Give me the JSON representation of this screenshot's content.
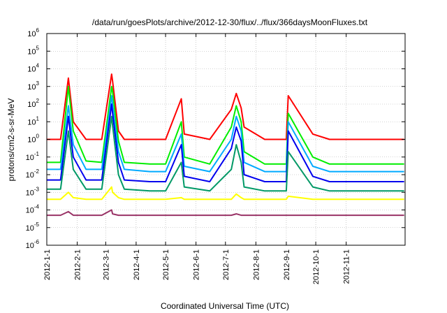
{
  "chart_data": {
    "type": "line",
    "title": "/data/run/goesPlots/archive/2012-12-30/flux/../flux/366daysMoonFluxes.txt",
    "xlabel": "Coordinated Universal Time (UTC)",
    "ylabel": "protons/cm2-s-sr-MeV",
    "yscale": "log",
    "ylim": [
      1e-06,
      1000000.0
    ],
    "xlim": [
      "2012-01-01",
      "2012-12-31"
    ],
    "grid": true,
    "legend": "none",
    "x_ticks": [
      "2012-1-1",
      "2012-2-1",
      "2012-3-1",
      "2012-4-1",
      "2012-5-1",
      "2012-6-1",
      "2012-7-1",
      "2012-8-1",
      "2012-9-1",
      "2012-10-1",
      "2012-11-1"
    ],
    "y_ticks": [
      {
        "value": 1e-06,
        "base": "10",
        "exp": "-6"
      },
      {
        "value": 1e-05,
        "base": "10",
        "exp": "-5"
      },
      {
        "value": 0.0001,
        "base": "10",
        "exp": "-4"
      },
      {
        "value": 0.001,
        "base": "10",
        "exp": "-3"
      },
      {
        "value": 0.01,
        "base": "10",
        "exp": "-2"
      },
      {
        "value": 0.1,
        "base": "10",
        "exp": "-1"
      },
      {
        "value": 1,
        "base": "10",
        "exp": "0"
      },
      {
        "value": 10,
        "base": "10",
        "exp": "1"
      },
      {
        "value": 100,
        "base": "10",
        "exp": "2"
      },
      {
        "value": 1000,
        "base": "10",
        "exp": "3"
      },
      {
        "value": 10000,
        "base": "10",
        "exp": "4"
      },
      {
        "value": 100000,
        "base": "10",
        "exp": "5"
      },
      {
        "value": 1000000,
        "base": "10",
        "exp": "6"
      }
    ],
    "x": [
      "2012-01-01",
      "2012-01-15",
      "2012-01-23",
      "2012-01-28",
      "2012-02-10",
      "2012-02-26",
      "2012-03-07",
      "2012-03-08",
      "2012-03-14",
      "2012-03-20",
      "2012-04-15",
      "2012-05-01",
      "2012-05-17",
      "2012-05-20",
      "2012-06-15",
      "2012-07-07",
      "2012-07-12",
      "2012-07-17",
      "2012-07-20",
      "2012-08-10",
      "2012-09-01",
      "2012-09-03",
      "2012-09-28",
      "2012-10-15",
      "2012-11-01",
      "2012-11-15",
      "2012-12-10",
      "2012-12-30"
    ],
    "series": [
      {
        "color": "#ff0000",
        "values": [
          1,
          1,
          3000,
          10,
          1,
          1,
          5000,
          2000,
          3,
          1,
          1,
          1,
          200,
          2,
          1,
          50,
          400,
          60,
          5,
          1,
          1,
          300,
          2,
          1,
          1,
          1,
          1,
          1
        ]
      },
      {
        "color": "#00ee00",
        "values": [
          0.05,
          0.05,
          1000,
          3,
          0.06,
          0.05,
          1000,
          500,
          0.8,
          0.05,
          0.04,
          0.04,
          10,
          0.1,
          0.04,
          5,
          80,
          10,
          0.2,
          0.04,
          0.04,
          30,
          0.1,
          0.04,
          0.04,
          0.04,
          0.04,
          0.04
        ]
      },
      {
        "color": "#00aaff",
        "values": [
          0.02,
          0.02,
          80,
          0.5,
          0.02,
          0.02,
          300,
          100,
          0.2,
          0.02,
          0.015,
          0.015,
          2,
          0.03,
          0.015,
          1,
          20,
          3,
          0.05,
          0.015,
          0.015,
          10,
          0.03,
          0.015,
          0.015,
          0.015,
          0.015,
          0.015
        ]
      },
      {
        "color": "#0000ee",
        "values": [
          0.005,
          0.005,
          20,
          0.1,
          0.005,
          0.005,
          100,
          30,
          0.05,
          0.005,
          0.004,
          0.004,
          0.5,
          0.008,
          0.004,
          0.3,
          5,
          0.8,
          0.01,
          0.004,
          0.004,
          3,
          0.008,
          0.004,
          0.004,
          0.004,
          0.004,
          0.004
        ]
      },
      {
        "color": "#009966",
        "values": [
          0.0015,
          0.0015,
          3,
          0.02,
          0.0015,
          0.0015,
          20,
          6,
          0.01,
          0.0015,
          0.0012,
          0.0012,
          0.05,
          0.002,
          0.0012,
          0.02,
          0.5,
          0.05,
          0.002,
          0.0012,
          0.0012,
          0.2,
          0.002,
          0.0012,
          0.0012,
          0.0012,
          0.0012,
          0.0012
        ]
      },
      {
        "color": "#ffff00",
        "values": [
          0.0004,
          0.0004,
          0.001,
          0.0005,
          0.0004,
          0.0004,
          0.002,
          0.001,
          0.0005,
          0.0004,
          0.0004,
          0.0004,
          0.0005,
          0.0004,
          0.0004,
          0.0004,
          0.0008,
          0.0005,
          0.0004,
          0.0004,
          0.0004,
          0.0006,
          0.0004,
          0.0004,
          0.0004,
          0.0004,
          0.0004,
          0.0004
        ]
      },
      {
        "color": "#993366",
        "values": [
          5e-05,
          5e-05,
          8e-05,
          5e-05,
          5e-05,
          5e-05,
          0.0001,
          6e-05,
          5e-05,
          5e-05,
          5e-05,
          5e-05,
          5e-05,
          5e-05,
          5e-05,
          5e-05,
          6e-05,
          5e-05,
          5e-05,
          5e-05,
          5e-05,
          5e-05,
          5e-05,
          5e-05,
          5e-05,
          5e-05,
          5e-05,
          5e-05
        ]
      }
    ]
  }
}
